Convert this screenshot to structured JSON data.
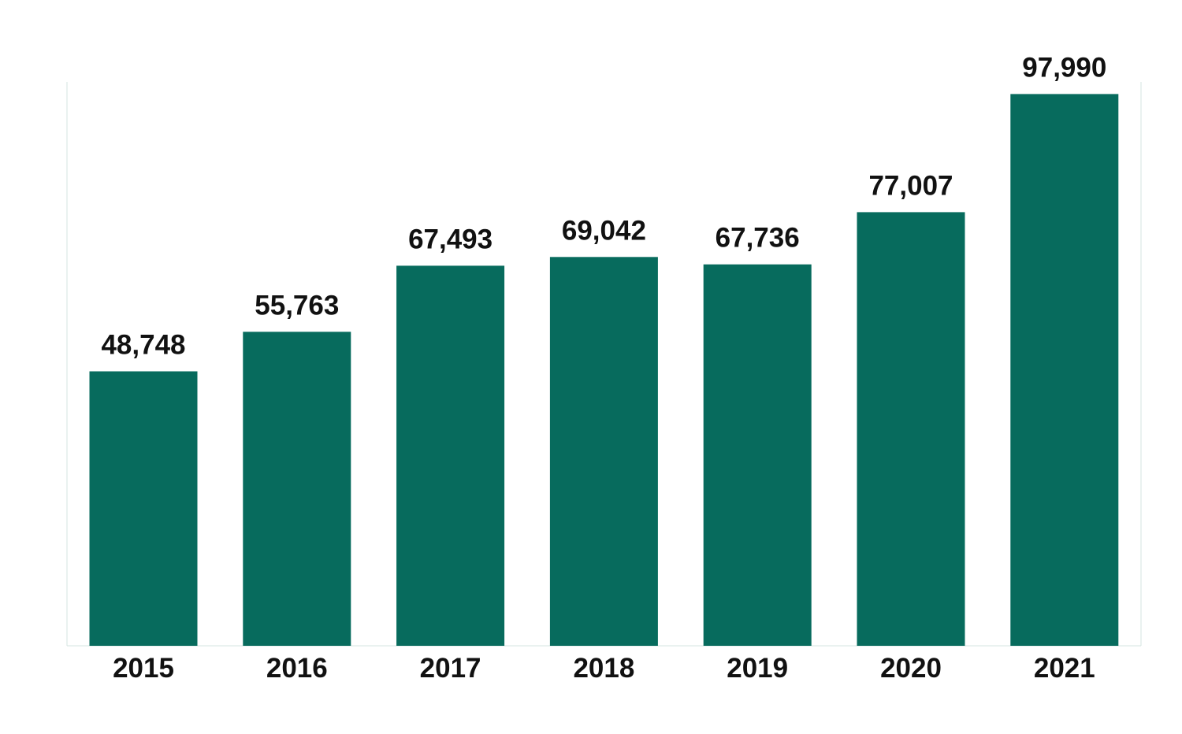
{
  "chart_data": {
    "type": "bar",
    "title": "",
    "xlabel": "",
    "ylabel": "",
    "categories": [
      "2015",
      "2016",
      "2017",
      "2018",
      "2019",
      "2020",
      "2021"
    ],
    "values": [
      48748,
      55763,
      67493,
      69042,
      67736,
      77007,
      97990
    ],
    "value_labels": [
      "48,748",
      "55,763",
      "67,493",
      "69,042",
      "67,736",
      "77,007",
      "97,990"
    ],
    "ylim": [
      0,
      100000
    ],
    "grid": false,
    "legend": "none",
    "colors": {
      "bar": "#076b5d",
      "frame": "#d6e4e0",
      "text": "#111111"
    }
  }
}
